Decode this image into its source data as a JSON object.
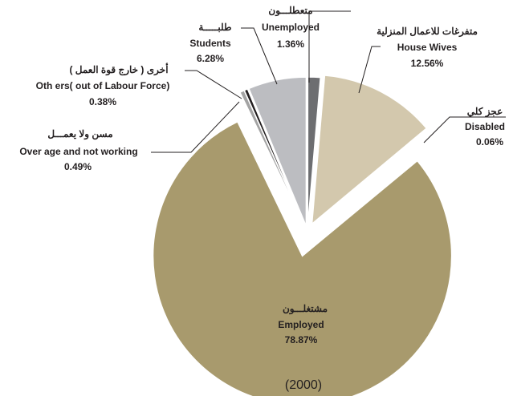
{
  "chart_data": {
    "type": "pie",
    "title": "(2000)",
    "categories": [
      "Unemployed",
      "House Wives",
      "Disabled",
      "Employed",
      "Over age  and not working",
      "Oth  ers( out of Labour Force)",
      "Students"
    ],
    "arabic_labels": [
      "متعطلـــون",
      "متفرغات للاعمال المنزلية",
      "عجز كلي",
      "مشتغلـــون",
      "مسن ولا يعمـــل",
      "أخرى ( خارج قوة العمل )",
      "طلبـــــة"
    ],
    "values": [
      1.36,
      12.56,
      0.06,
      78.87,
      0.49,
      0.38,
      6.28
    ],
    "value_labels": [
      "1.36%",
      "12.56%",
      "0.06%",
      "78.87%",
      "0.49%",
      "0.38%",
      "6.28%"
    ],
    "colors": [
      "#6d6e71",
      "#d3c8ad",
      "#9f9f9f",
      "#a89a6d",
      "#a3a3a3",
      "#231f20",
      "#bcbdc1"
    ]
  }
}
